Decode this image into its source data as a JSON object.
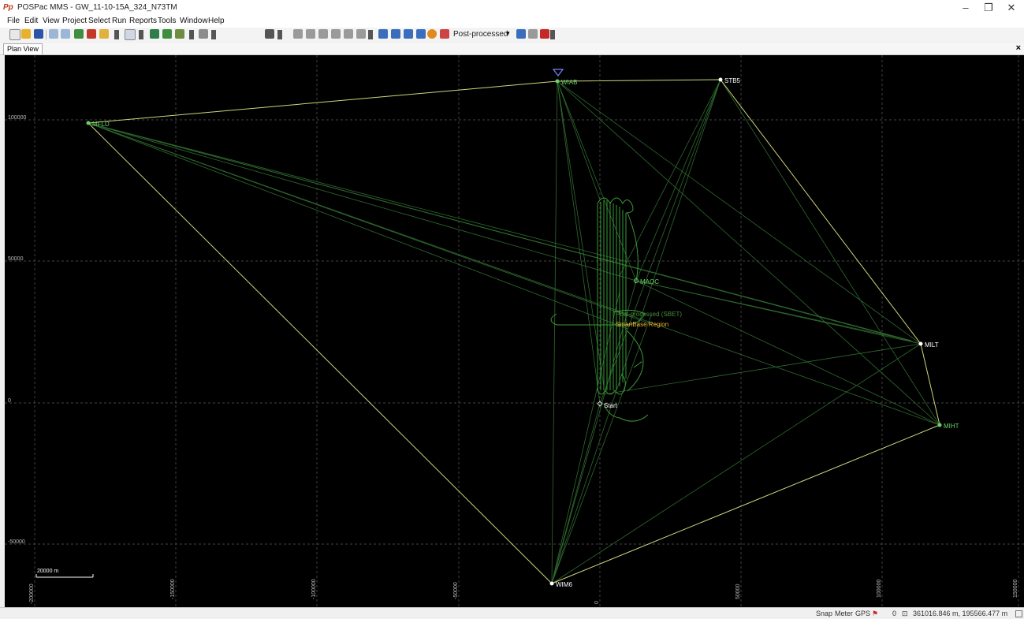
{
  "window": {
    "app_logo": "Pp",
    "title": "POSPac MMS - GW_11-10-15A_324_N73TM",
    "minimize": "–",
    "restore": "❐",
    "close": "✕"
  },
  "menu": [
    "File",
    "Edit",
    "View",
    "Project",
    "Select",
    "Run",
    "Reports",
    "Tools",
    "Window",
    "Help"
  ],
  "toolbar": {
    "solution_select": "Post-processed",
    "buttons": [
      "new-icon",
      "open-icon",
      "save-icon",
      "undo-icon",
      "redo-icon",
      "import-icon",
      "export-icon",
      "view-icon",
      "pages-icon",
      "gnss-icon",
      "copy-icon",
      "tools-icon",
      "arrow-icon",
      "settings-icon",
      "align-icon",
      "measure-icon",
      "grid-icon",
      "table-icon",
      "plot-icon",
      "zoom-in-icon",
      "zoom-out-icon",
      "zoom-fit-icon",
      "zoom-window-icon",
      "refresh-icon",
      "chart-icon",
      "filter-icon",
      "layers-icon",
      "flag-icon"
    ]
  },
  "tab": {
    "label": "Plan View",
    "close": "×"
  },
  "plan": {
    "y_ticks": [
      "100000",
      "50000",
      "0",
      "-50000"
    ],
    "x_ticks": [
      "-200000",
      "-150000",
      "-100000",
      "-50000",
      "0",
      "50000",
      "100000",
      "150000"
    ],
    "scale_bar": "20000 m",
    "stations": [
      {
        "name": "MFLD"
      },
      {
        "name": "WIAB"
      },
      {
        "name": "STB5"
      },
      {
        "name": "MAOC"
      },
      {
        "name": "MILT"
      },
      {
        "name": "MIHT"
      },
      {
        "name": "WIM6"
      },
      {
        "name": "Start"
      }
    ],
    "overlay_labels": {
      "post_processed": "Post-processed (SBET)",
      "smartbase": "SmartBase Region"
    },
    "colors": {
      "background": "#000000",
      "grid": "#5a5a5a",
      "baseline": "#2f6a2f",
      "smartbase": "#cfd57a",
      "track": "#3a9a3a",
      "station_green": "#6bd16b",
      "station_white": "#ffffff",
      "smartbase_label": "#f0b030"
    }
  },
  "status": {
    "snap": "Snap",
    "meter": "Meter",
    "gps": "GPS",
    "count": "0",
    "coords": "361016.846 m, 195566.477 m"
  }
}
